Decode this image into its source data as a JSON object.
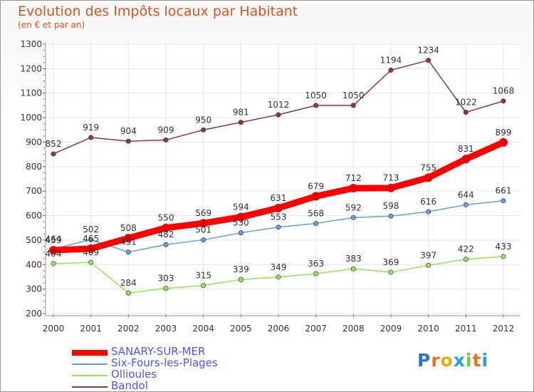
{
  "title": "Evolution des Impôts locaux par Habitant",
  "subtitle": "(en € et par an)",
  "logo": {
    "text": "Proxiti",
    "letters": [
      "P",
      "r",
      "o",
      "x",
      "i",
      "t",
      "i"
    ],
    "colors": [
      "#2f6fce",
      "#e9731c",
      "#f0a51b",
      "#2aa0d8",
      "#7cc242",
      "#e9731c",
      "#2aa0d8"
    ]
  },
  "chart_data": {
    "type": "line",
    "categories": [
      "2000",
      "2001",
      "2002",
      "2003",
      "2004",
      "2005",
      "2006",
      "2007",
      "2008",
      "2009",
      "2010",
      "2011",
      "2012"
    ],
    "ylim": [
      200,
      1300
    ],
    "yticks": [
      200,
      300,
      400,
      500,
      600,
      700,
      800,
      900,
      1000,
      1100,
      1200,
      1300
    ],
    "grid": true,
    "legend_position": "bottom-left",
    "series": [
      {
        "name": "SANARY-SUR-MER",
        "color": "#ff0000",
        "emphasis": true,
        "values": [
          459,
          465,
          508,
          550,
          569,
          594,
          631,
          679,
          712,
          713,
          755,
          831,
          899
        ]
      },
      {
        "name": "Six-Fours-les-Plages",
        "color": "#6a9fd4",
        "values": [
          464,
          502,
          451,
          482,
          501,
          530,
          553,
          568,
          592,
          598,
          616,
          644,
          661
        ]
      },
      {
        "name": "Ollioules",
        "color": "#99e060",
        "values": [
          404,
          409,
          284,
          303,
          315,
          339,
          349,
          363,
          383,
          369,
          397,
          422,
          433
        ]
      },
      {
        "name": "Bandol",
        "color": "#8a3a3a",
        "values": [
          852,
          919,
          904,
          909,
          950,
          981,
          1012,
          1050,
          1050,
          1194,
          1234,
          1022,
          1068
        ]
      }
    ]
  }
}
